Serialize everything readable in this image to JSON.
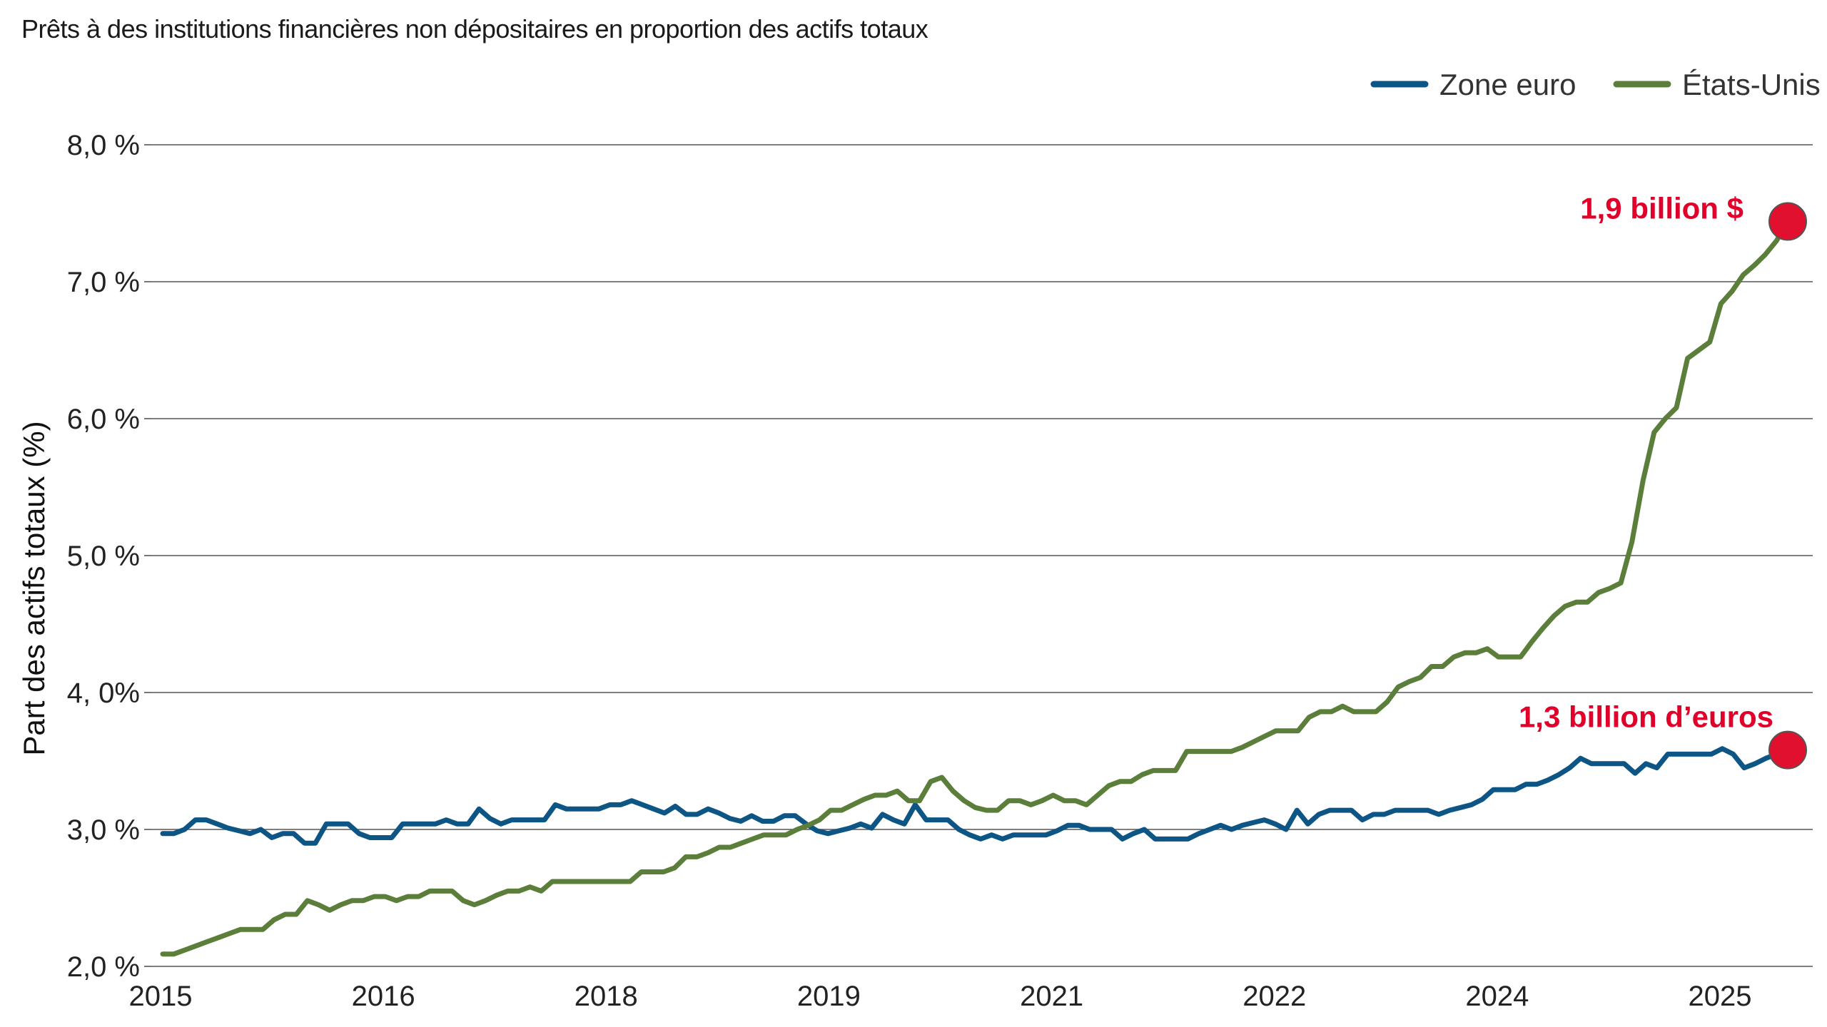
{
  "chart_data": {
    "type": "line",
    "title": "Prêts à des institutions financières non dépositaires en proportion des actifs totaux",
    "ylabel": "Part des actifs totaux (%)",
    "xlabel": "",
    "ylim": [
      2.0,
      8.0
    ],
    "y_ticks": [
      {
        "value": 2.0,
        "label": "2,0 %"
      },
      {
        "value": 3.0,
        "label": "3,0 %"
      },
      {
        "value": 4.0,
        "label": "4, 0%"
      },
      {
        "value": 5.0,
        "label": "5,0 %"
      },
      {
        "value": 6.0,
        "label": "6,0 %"
      },
      {
        "value": 7.0,
        "label": "7,0 %"
      },
      {
        "value": 8.0,
        "label": "8,0 %"
      }
    ],
    "x_tick_labels": [
      "2015",
      "2016",
      "2018",
      "2019",
      "2021",
      "2022",
      "2024",
      "2025"
    ],
    "grid": "horizontal",
    "legend_position": "top-right",
    "series": [
      {
        "name": "Zone euro",
        "color": "#0d5585",
        "values": [
          2.97,
          2.97,
          3.0,
          3.07,
          3.07,
          3.04,
          3.01,
          2.99,
          2.97,
          3.0,
          2.94,
          2.97,
          2.97,
          2.9,
          2.9,
          3.04,
          3.04,
          3.04,
          2.97,
          2.94,
          2.94,
          2.94,
          3.04,
          3.04,
          3.04,
          3.04,
          3.07,
          3.04,
          3.04,
          3.15,
          3.08,
          3.04,
          3.07,
          3.07,
          3.07,
          3.07,
          3.18,
          3.15,
          3.15,
          3.15,
          3.15,
          3.18,
          3.18,
          3.21,
          3.18,
          3.15,
          3.12,
          3.17,
          3.11,
          3.11,
          3.15,
          3.12,
          3.08,
          3.06,
          3.1,
          3.06,
          3.06,
          3.1,
          3.1,
          3.04,
          2.99,
          2.97,
          2.99,
          3.01,
          3.04,
          3.01,
          3.11,
          3.07,
          3.04,
          3.18,
          3.07,
          3.07,
          3.07,
          3.0,
          2.96,
          2.93,
          2.96,
          2.93,
          2.96,
          2.96,
          2.96,
          2.96,
          2.99,
          3.03,
          3.03,
          3.0,
          3.0,
          3.0,
          2.93,
          2.97,
          3.0,
          2.93,
          2.93,
          2.93,
          2.93,
          2.97,
          3.0,
          3.03,
          3.0,
          3.03,
          3.05,
          3.07,
          3.04,
          3.0,
          3.14,
          3.04,
          3.11,
          3.14,
          3.14,
          3.14,
          3.07,
          3.11,
          3.11,
          3.14,
          3.14,
          3.14,
          3.14,
          3.11,
          3.14,
          3.16,
          3.18,
          3.22,
          3.29,
          3.29,
          3.29,
          3.33,
          3.33,
          3.36,
          3.4,
          3.45,
          3.52,
          3.48,
          3.48,
          3.48,
          3.48,
          3.41,
          3.48,
          3.45,
          3.55,
          3.55,
          3.55,
          3.55,
          3.55,
          3.59,
          3.55,
          3.45,
          3.48,
          3.52,
          3.55,
          3.58
        ]
      },
      {
        "name": "États-Unis",
        "color": "#5b7f3a",
        "values": [
          2.09,
          2.09,
          2.12,
          2.15,
          2.18,
          2.21,
          2.24,
          2.27,
          2.27,
          2.27,
          2.34,
          2.38,
          2.38,
          2.48,
          2.45,
          2.41,
          2.45,
          2.48,
          2.48,
          2.51,
          2.51,
          2.48,
          2.51,
          2.51,
          2.55,
          2.55,
          2.55,
          2.48,
          2.45,
          2.48,
          2.52,
          2.55,
          2.55,
          2.58,
          2.55,
          2.62,
          2.62,
          2.62,
          2.62,
          2.62,
          2.62,
          2.62,
          2.62,
          2.69,
          2.69,
          2.69,
          2.72,
          2.8,
          2.8,
          2.83,
          2.87,
          2.87,
          2.9,
          2.93,
          2.96,
          2.96,
          2.96,
          3.0,
          3.03,
          3.07,
          3.14,
          3.14,
          3.18,
          3.22,
          3.25,
          3.25,
          3.28,
          3.21,
          3.21,
          3.35,
          3.38,
          3.28,
          3.21,
          3.16,
          3.14,
          3.14,
          3.21,
          3.21,
          3.18,
          3.21,
          3.25,
          3.21,
          3.21,
          3.18,
          3.25,
          3.32,
          3.35,
          3.35,
          3.4,
          3.43,
          3.43,
          3.43,
          3.57,
          3.57,
          3.57,
          3.57,
          3.57,
          3.6,
          3.64,
          3.68,
          3.72,
          3.72,
          3.72,
          3.82,
          3.86,
          3.86,
          3.9,
          3.86,
          3.86,
          3.86,
          3.93,
          4.04,
          4.08,
          4.11,
          4.19,
          4.19,
          4.26,
          4.29,
          4.29,
          4.32,
          4.26,
          4.26,
          4.26,
          4.37,
          4.47,
          4.56,
          4.63,
          4.66,
          4.66,
          4.73,
          4.76,
          4.8,
          5.1,
          5.55,
          5.9,
          6.0,
          6.08,
          6.44,
          6.5,
          6.56,
          6.84,
          6.93,
          7.05,
          7.12,
          7.2,
          7.3,
          7.44
        ]
      }
    ],
    "annotations": [
      {
        "text": "1,9 billion $",
        "series": 1
      },
      {
        "text": "1,3 billion d’euros",
        "series": 0
      }
    ]
  }
}
